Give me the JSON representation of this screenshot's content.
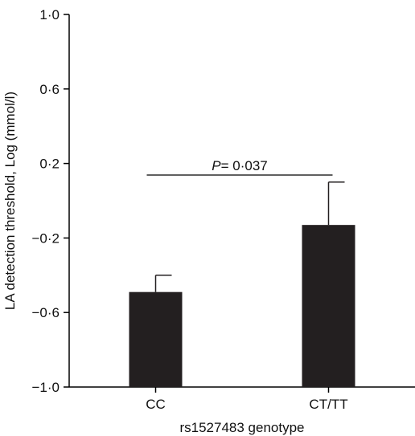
{
  "chart_data": {
    "type": "bar",
    "categories": [
      "CC",
      "CT/TT"
    ],
    "values": [
      -0.49,
      -0.13
    ],
    "error_upper": [
      -0.4,
      0.1
    ],
    "ylim": [
      -1.0,
      1.0
    ],
    "yticks": [
      -1.0,
      -0.6,
      -0.2,
      0.2,
      0.6,
      1.0
    ],
    "ytick_labels": [
      "−1·0",
      "−0·6",
      "−0·2",
      "0·2",
      "0·6",
      "1·0"
    ],
    "xlabel": "rs1527483 genotype",
    "ylabel": "LA detection threshold, Log (mmol/l)",
    "bar_color": "#231f20",
    "grid": false,
    "annotation": {
      "p_symbol": "P",
      "p_value_text": "= 0·037",
      "between": [
        "CC",
        "CT/TT"
      ]
    }
  }
}
